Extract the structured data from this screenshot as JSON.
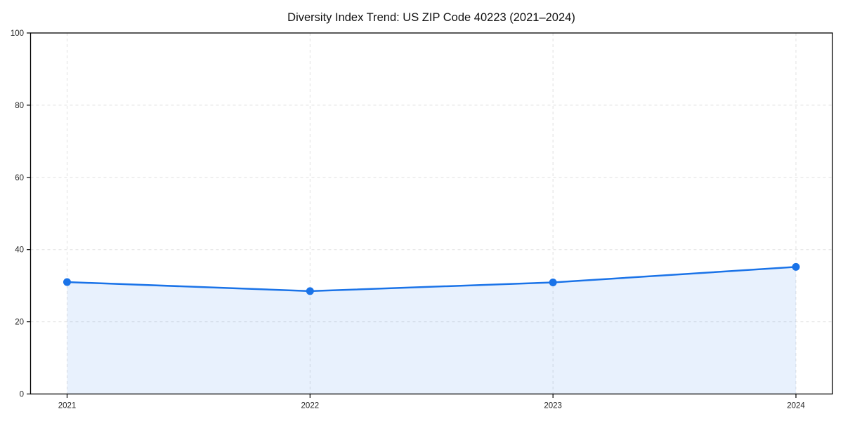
{
  "page": {
    "background": "#ffffff"
  },
  "chart_data": {
    "type": "line",
    "title": "Diversity Index Trend: US ZIP Code 40223 (2021–2024)",
    "x": [
      2021,
      2022,
      2023,
      2024
    ],
    "series": [
      {
        "name": "Diversity Index",
        "values": [
          31.0,
          28.5,
          30.9,
          35.2
        ]
      }
    ],
    "xlabel": "",
    "ylabel": "",
    "ylim": [
      0,
      100
    ],
    "yticks": [
      0,
      20,
      40,
      60,
      80,
      100
    ],
    "grid": "on",
    "grid_style": "dashed",
    "grid_color": "#e0e0e0",
    "legend_position": "none",
    "area_fill": true,
    "line_color": "#1a73e8",
    "fill_color": "#1a73e8",
    "fill_opacity": 0.1,
    "marker": "circle",
    "marker_radius": 5.5,
    "axis_color": "#000000"
  }
}
